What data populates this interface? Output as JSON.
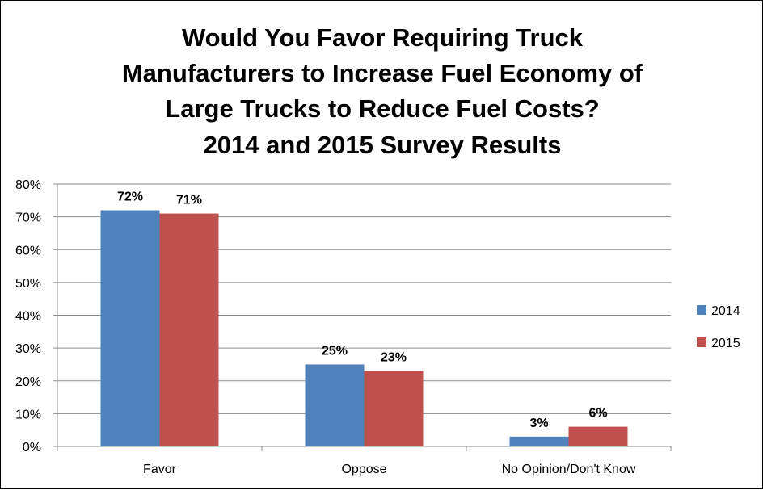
{
  "chart_data": {
    "type": "bar",
    "title": [
      "Would You Favor Requiring Truck",
      "Manufacturers to Increase Fuel Economy of",
      "Large Trucks to Reduce Fuel Costs?",
      "2014 and 2015 Survey Results"
    ],
    "categories": [
      "Favor",
      "Oppose",
      "No Opinion/Don't Know"
    ],
    "series": [
      {
        "name": "2014",
        "values": [
          72,
          25,
          3
        ],
        "labels": [
          "72%",
          "25%",
          "3%"
        ],
        "color": "#4F81BD"
      },
      {
        "name": "2015",
        "values": [
          71,
          23,
          6
        ],
        "labels": [
          "71%",
          "23%",
          "6%"
        ],
        "color": "#C0504D"
      }
    ],
    "ylim": [
      0,
      80
    ],
    "yticks": [
      "0%",
      "10%",
      "20%",
      "30%",
      "40%",
      "50%",
      "60%",
      "70%",
      "80%"
    ],
    "grid": true,
    "legend_position": "right"
  }
}
